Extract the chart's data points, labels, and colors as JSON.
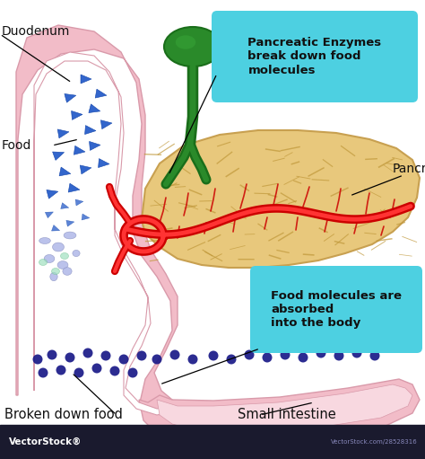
{
  "bg_color": "#ffffff",
  "pink_outer": "#f2bcc8",
  "pink_inner": "#f8d8e0",
  "pink_edge": "#d99aaa",
  "pancreas_fill": "#e8c87c",
  "pancreas_edge": "#c8a050",
  "pancreas_texture": "#c0983a",
  "duct_dark": "#cc0000",
  "duct_light": "#ff3333",
  "gb_dark": "#1a6e1a",
  "gb_mid": "#2a8a2a",
  "gb_light": "#3aaa3a",
  "tri_fill": "#3366cc",
  "tri_edge": "#1144aa",
  "frag_fill": "#b0b8e8",
  "frag_edge": "#8890c0",
  "frag_green": "#a0e0c0",
  "dot_color": "#1a1a88",
  "box_color": "#4dd0e1",
  "text_color": "#111111",
  "wm_bg": "#1a1a2e",
  "wm_text": "#ffffff",
  "wm_sub": "#8888bb",
  "labels": {
    "duodenum": "Duodenum",
    "food": "Food",
    "pancreas": "Pancreas",
    "enzymes": "Pancreatic Enzymes\nbreak down food\nmolecules",
    "absorbed": "Food molecules are\nabsorbed\ninto the body",
    "broken": "Broken down food",
    "small_int": "Small intestine"
  }
}
